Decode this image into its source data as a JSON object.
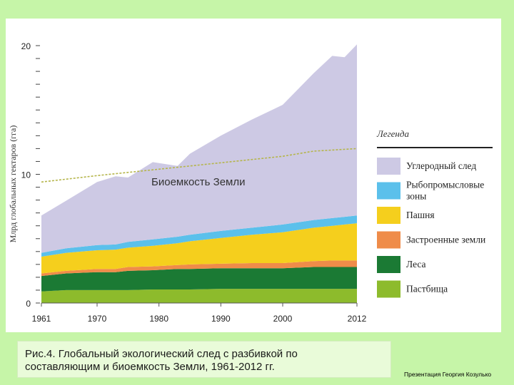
{
  "caption": {
    "line1": "Рис.4. Глобальный экологический след с разбивкой по",
    "line2": "составляющим и биоемкость Земли, 1961-2012 гг."
  },
  "credit": "Презентация Георгия Козулько",
  "chart_data": {
    "type": "area",
    "ylabel": "Млрд глобальных гектаров (гга)",
    "xlabel": "",
    "title": "",
    "xlim": [
      1961,
      2012
    ],
    "ylim": [
      0,
      20
    ],
    "grid": false,
    "legend_position": "right",
    "legend_title": "Легенда",
    "x_ticks": [
      "1961",
      "1970",
      "1980",
      "1990",
      "2000",
      "2012"
    ],
    "x_tick_values": [
      1961,
      1970,
      1980,
      1990,
      2000,
      2012
    ],
    "y_ticks": [
      "0",
      "10",
      "20"
    ],
    "y_tick_values": [
      0,
      10,
      20
    ],
    "x": [
      1961,
      1965,
      1970,
      1973,
      1975,
      1979,
      1983,
      1985,
      1990,
      1995,
      2000,
      2005,
      2008,
      2010,
      2012
    ],
    "series": [
      {
        "name": "Пастбища",
        "color": "#8dbb2c",
        "values": [
          0.9,
          1.0,
          1.0,
          1.0,
          1.0,
          1.05,
          1.05,
          1.05,
          1.1,
          1.1,
          1.1,
          1.1,
          1.1,
          1.1,
          1.1
        ]
      },
      {
        "name": "Леса",
        "color": "#1b7a34",
        "values": [
          1.2,
          1.3,
          1.4,
          1.4,
          1.5,
          1.5,
          1.6,
          1.6,
          1.6,
          1.6,
          1.6,
          1.7,
          1.7,
          1.7,
          1.7
        ]
      },
      {
        "name": "Застроенные земли",
        "color": "#ef8c49",
        "values": [
          0.2,
          0.2,
          0.25,
          0.25,
          0.3,
          0.3,
          0.3,
          0.35,
          0.35,
          0.4,
          0.4,
          0.45,
          0.5,
          0.5,
          0.5
        ]
      },
      {
        "name": "Пашня",
        "color": "#f5cf1d",
        "values": [
          1.3,
          1.4,
          1.45,
          1.5,
          1.5,
          1.6,
          1.7,
          1.8,
          2.0,
          2.2,
          2.4,
          2.6,
          2.7,
          2.8,
          2.9
        ]
      },
      {
        "name": "Рыбопромысловые зоны",
        "color": "#5bc0eb",
        "values": [
          0.3,
          0.35,
          0.4,
          0.4,
          0.45,
          0.5,
          0.5,
          0.5,
          0.55,
          0.55,
          0.6,
          0.6,
          0.6,
          0.6,
          0.6
        ]
      },
      {
        "name": "Углеродный след",
        "color": "#cdc9e4",
        "values": [
          2.9,
          3.7,
          4.9,
          5.3,
          5.0,
          6.0,
          5.5,
          6.3,
          7.4,
          8.4,
          9.3,
          11.4,
          12.6,
          12.4,
          13.3
        ]
      }
    ],
    "biocapacity": {
      "name": "Биоемкость Земли",
      "color": "#b5b54a",
      "x": [
        1961,
        1970,
        1980,
        1990,
        2000,
        2005,
        2012
      ],
      "values": [
        9.4,
        9.9,
        10.4,
        10.9,
        11.4,
        11.8,
        12.0
      ]
    }
  }
}
